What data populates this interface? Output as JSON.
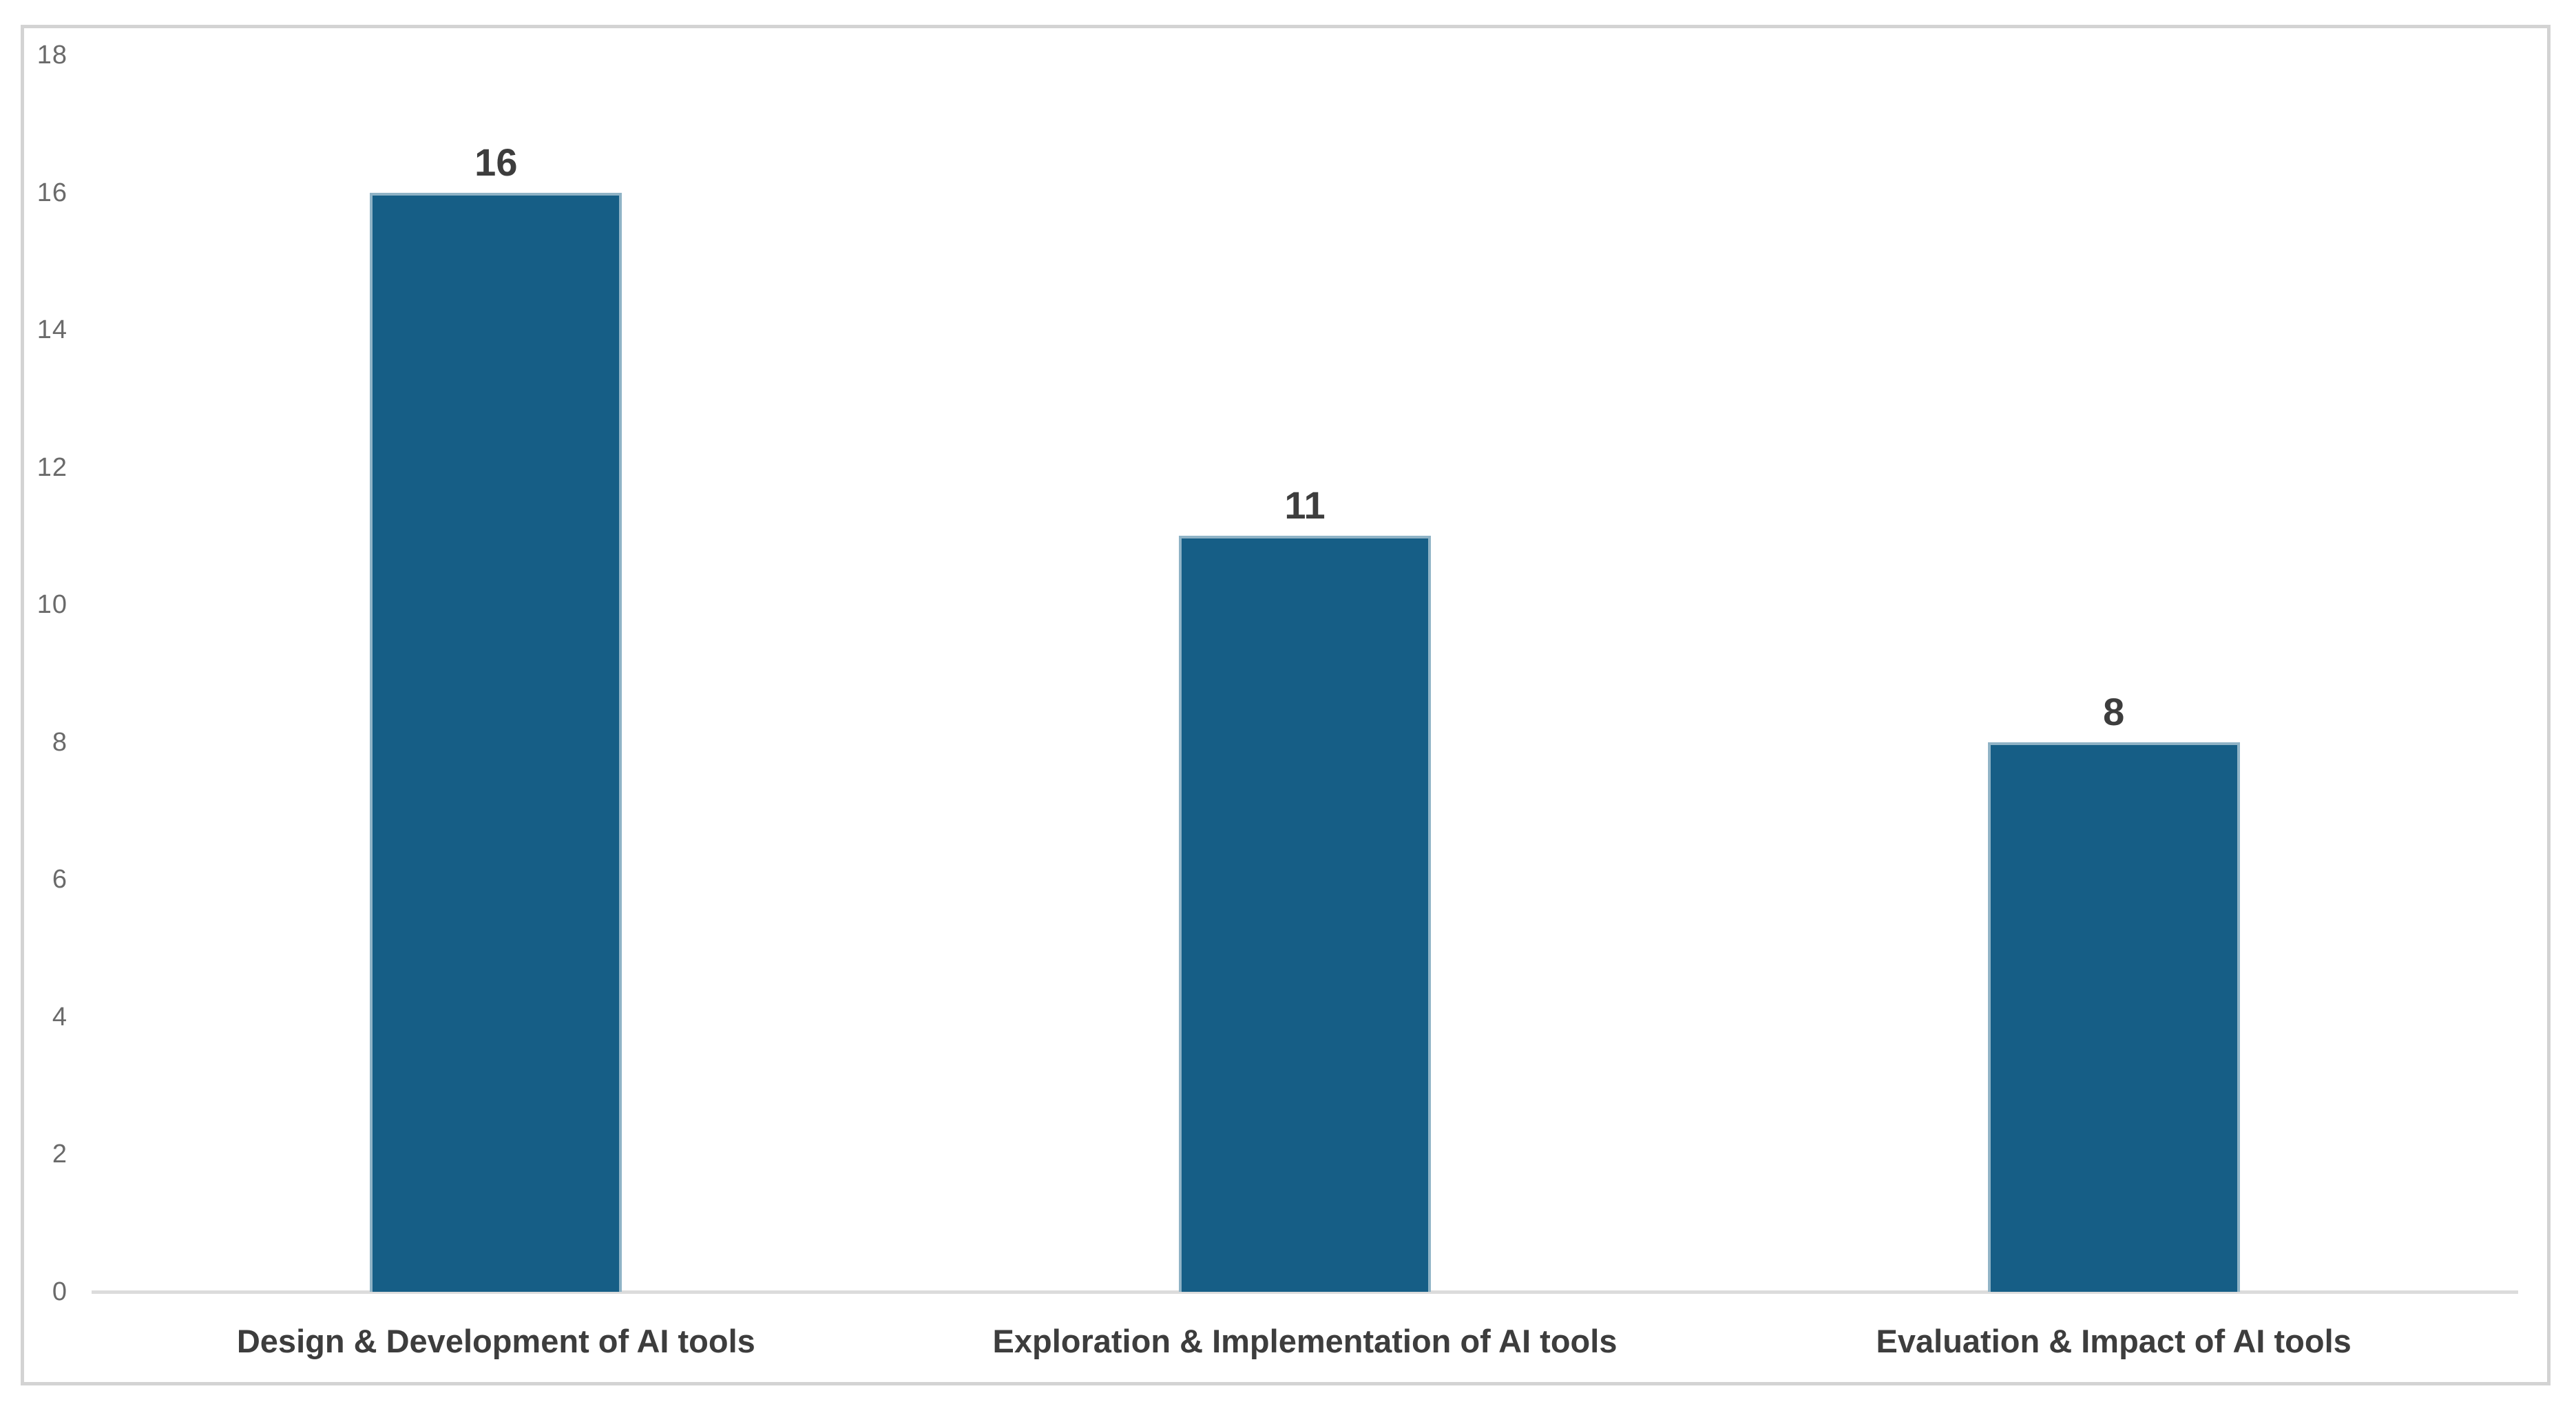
{
  "chart_data": {
    "type": "bar",
    "title": "",
    "xlabel": "",
    "ylabel": "",
    "categories": [
      "Design & Development of AI tools",
      "Exploration & Implementation of AI tools",
      "Evaluation & Impact of AI tools"
    ],
    "values": [
      16,
      11,
      8
    ],
    "data_labels": [
      "16",
      "11",
      "8"
    ],
    "ylim": [
      0,
      18
    ],
    "ytick_step": 2,
    "ytick_labels": [
      "0",
      "2",
      "4",
      "6",
      "8",
      "10",
      "12",
      "14",
      "16",
      "18"
    ],
    "gridlines": false,
    "legend_position": "none",
    "colors": {
      "bar_fill": "#165E86",
      "bar_edge": "#8FB3C6",
      "axis_line": "#DCDCDC",
      "tick_label": "#6A6A6A",
      "category_label": "#3D3D3D",
      "data_label": "#3D3D3D",
      "chart_border": "#D3D3D3",
      "background": "#FFFFFF"
    }
  }
}
